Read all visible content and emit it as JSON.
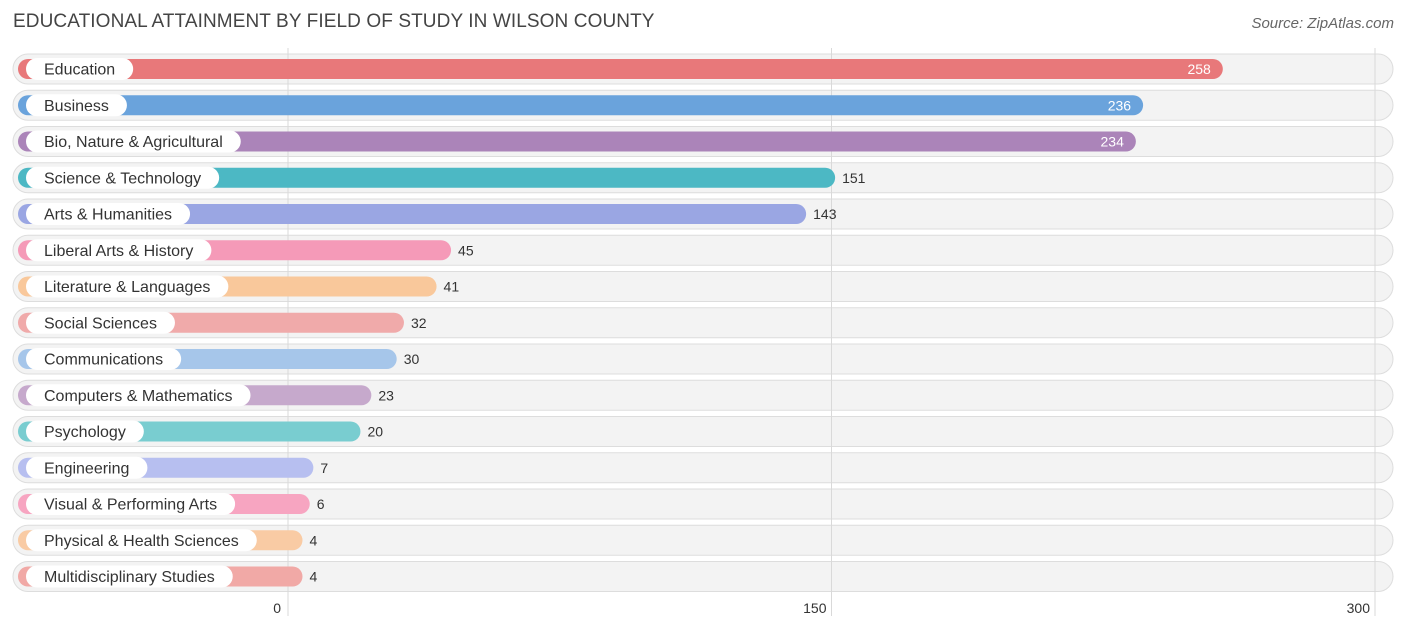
{
  "chart_data": {
    "type": "bar",
    "orientation": "horizontal",
    "title": "EDUCATIONAL ATTAINMENT BY FIELD OF STUDY IN WILSON COUNTY",
    "source": "Source: ZipAtlas.com",
    "xlim": [
      0,
      300
    ],
    "xticks": [
      "0",
      "150",
      "300"
    ],
    "categories": [
      "Education",
      "Business",
      "Bio, Nature & Agricultural",
      "Science & Technology",
      "Arts & Humanities",
      "Liberal Arts & History",
      "Literature & Languages",
      "Social Sciences",
      "Communications",
      "Computers & Mathematics",
      "Psychology",
      "Engineering",
      "Visual & Performing Arts",
      "Physical & Health Sciences",
      "Multidisciplinary Studies"
    ],
    "values": [
      258,
      236,
      234,
      151,
      143,
      45,
      41,
      32,
      30,
      23,
      20,
      7,
      6,
      4,
      4
    ],
    "colors": [
      "#e8787a",
      "#6aa3dc",
      "#ab84b9",
      "#4cb8c4",
      "#9aa6e3",
      "#f59ab8",
      "#f9c89b",
      "#f0aaaa",
      "#a6c6ea",
      "#c6a9cc",
      "#79cdd0",
      "#b7bff0",
      "#f7a5c1",
      "#f9cba4",
      "#f1a9a6"
    ]
  }
}
